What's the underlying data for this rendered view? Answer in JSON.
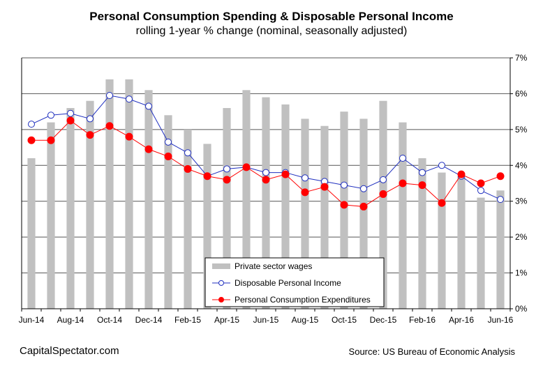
{
  "chart_data": {
    "type": "bar+line",
    "title": "Personal Consumption Spending & Disposable Personal Income",
    "subtitle": "rolling 1-year % change (nominal, seasonally adjusted)",
    "x": [
      "Jun-14",
      "Jul-14",
      "Aug-14",
      "Sep-14",
      "Oct-14",
      "Nov-14",
      "Dec-14",
      "Jan-15",
      "Feb-15",
      "Mar-15",
      "Apr-15",
      "May-15",
      "Jun-15",
      "Jul-15",
      "Aug-15",
      "Sep-15",
      "Oct-15",
      "Nov-15",
      "Dec-15",
      "Jan-16",
      "Feb-16",
      "Mar-16",
      "Apr-16",
      "May-16",
      "Jun-16"
    ],
    "x_tick_labels": [
      "Jun-14",
      "Aug-14",
      "Oct-14",
      "Dec-14",
      "Feb-15",
      "Apr-15",
      "Jun-15",
      "Aug-15",
      "Oct-15",
      "Dec-15",
      "Feb-16",
      "Apr-16",
      "Jun-16"
    ],
    "y_ticks": [
      "0%",
      "1%",
      "2%",
      "3%",
      "4%",
      "5%",
      "6%",
      "7%"
    ],
    "ylim": [
      0,
      7
    ],
    "y_axis_side": "right",
    "grid": "horizontal",
    "legend_placement": "bottom-center",
    "series": [
      {
        "name": "Private sector wages",
        "kind": "bar",
        "color": "#c0c0c0",
        "values": [
          4.2,
          5.2,
          5.6,
          5.8,
          6.4,
          6.4,
          6.1,
          5.4,
          5.0,
          4.6,
          5.6,
          6.1,
          5.9,
          5.7,
          5.3,
          5.1,
          5.5,
          5.3,
          5.8,
          5.2,
          4.2,
          3.8,
          3.7,
          3.1,
          3.3
        ]
      },
      {
        "name": "Disposable Personal Income",
        "kind": "line",
        "color": "#1f2fbf",
        "marker": "open-circle",
        "values": [
          5.15,
          5.4,
          5.45,
          5.3,
          5.95,
          5.85,
          5.65,
          4.65,
          4.35,
          3.7,
          3.9,
          3.95,
          3.8,
          3.8,
          3.65,
          3.55,
          3.45,
          3.35,
          3.6,
          4.2,
          3.8,
          4.0,
          3.7,
          3.3,
          3.05
        ]
      },
      {
        "name": "Personal Consumption Expenditures",
        "kind": "line",
        "color": "#ff0000",
        "marker": "filled-circle",
        "values": [
          4.7,
          4.7,
          5.25,
          4.85,
          5.1,
          4.8,
          4.45,
          4.25,
          3.9,
          3.7,
          3.6,
          3.95,
          3.6,
          3.75,
          3.25,
          3.4,
          2.9,
          2.85,
          3.2,
          3.5,
          3.45,
          2.95,
          3.75,
          3.5,
          3.7
        ]
      }
    ]
  },
  "footer": {
    "left": "CapitalSpectator.com",
    "right": "Source: US Bureau  of Economic Analysis"
  }
}
